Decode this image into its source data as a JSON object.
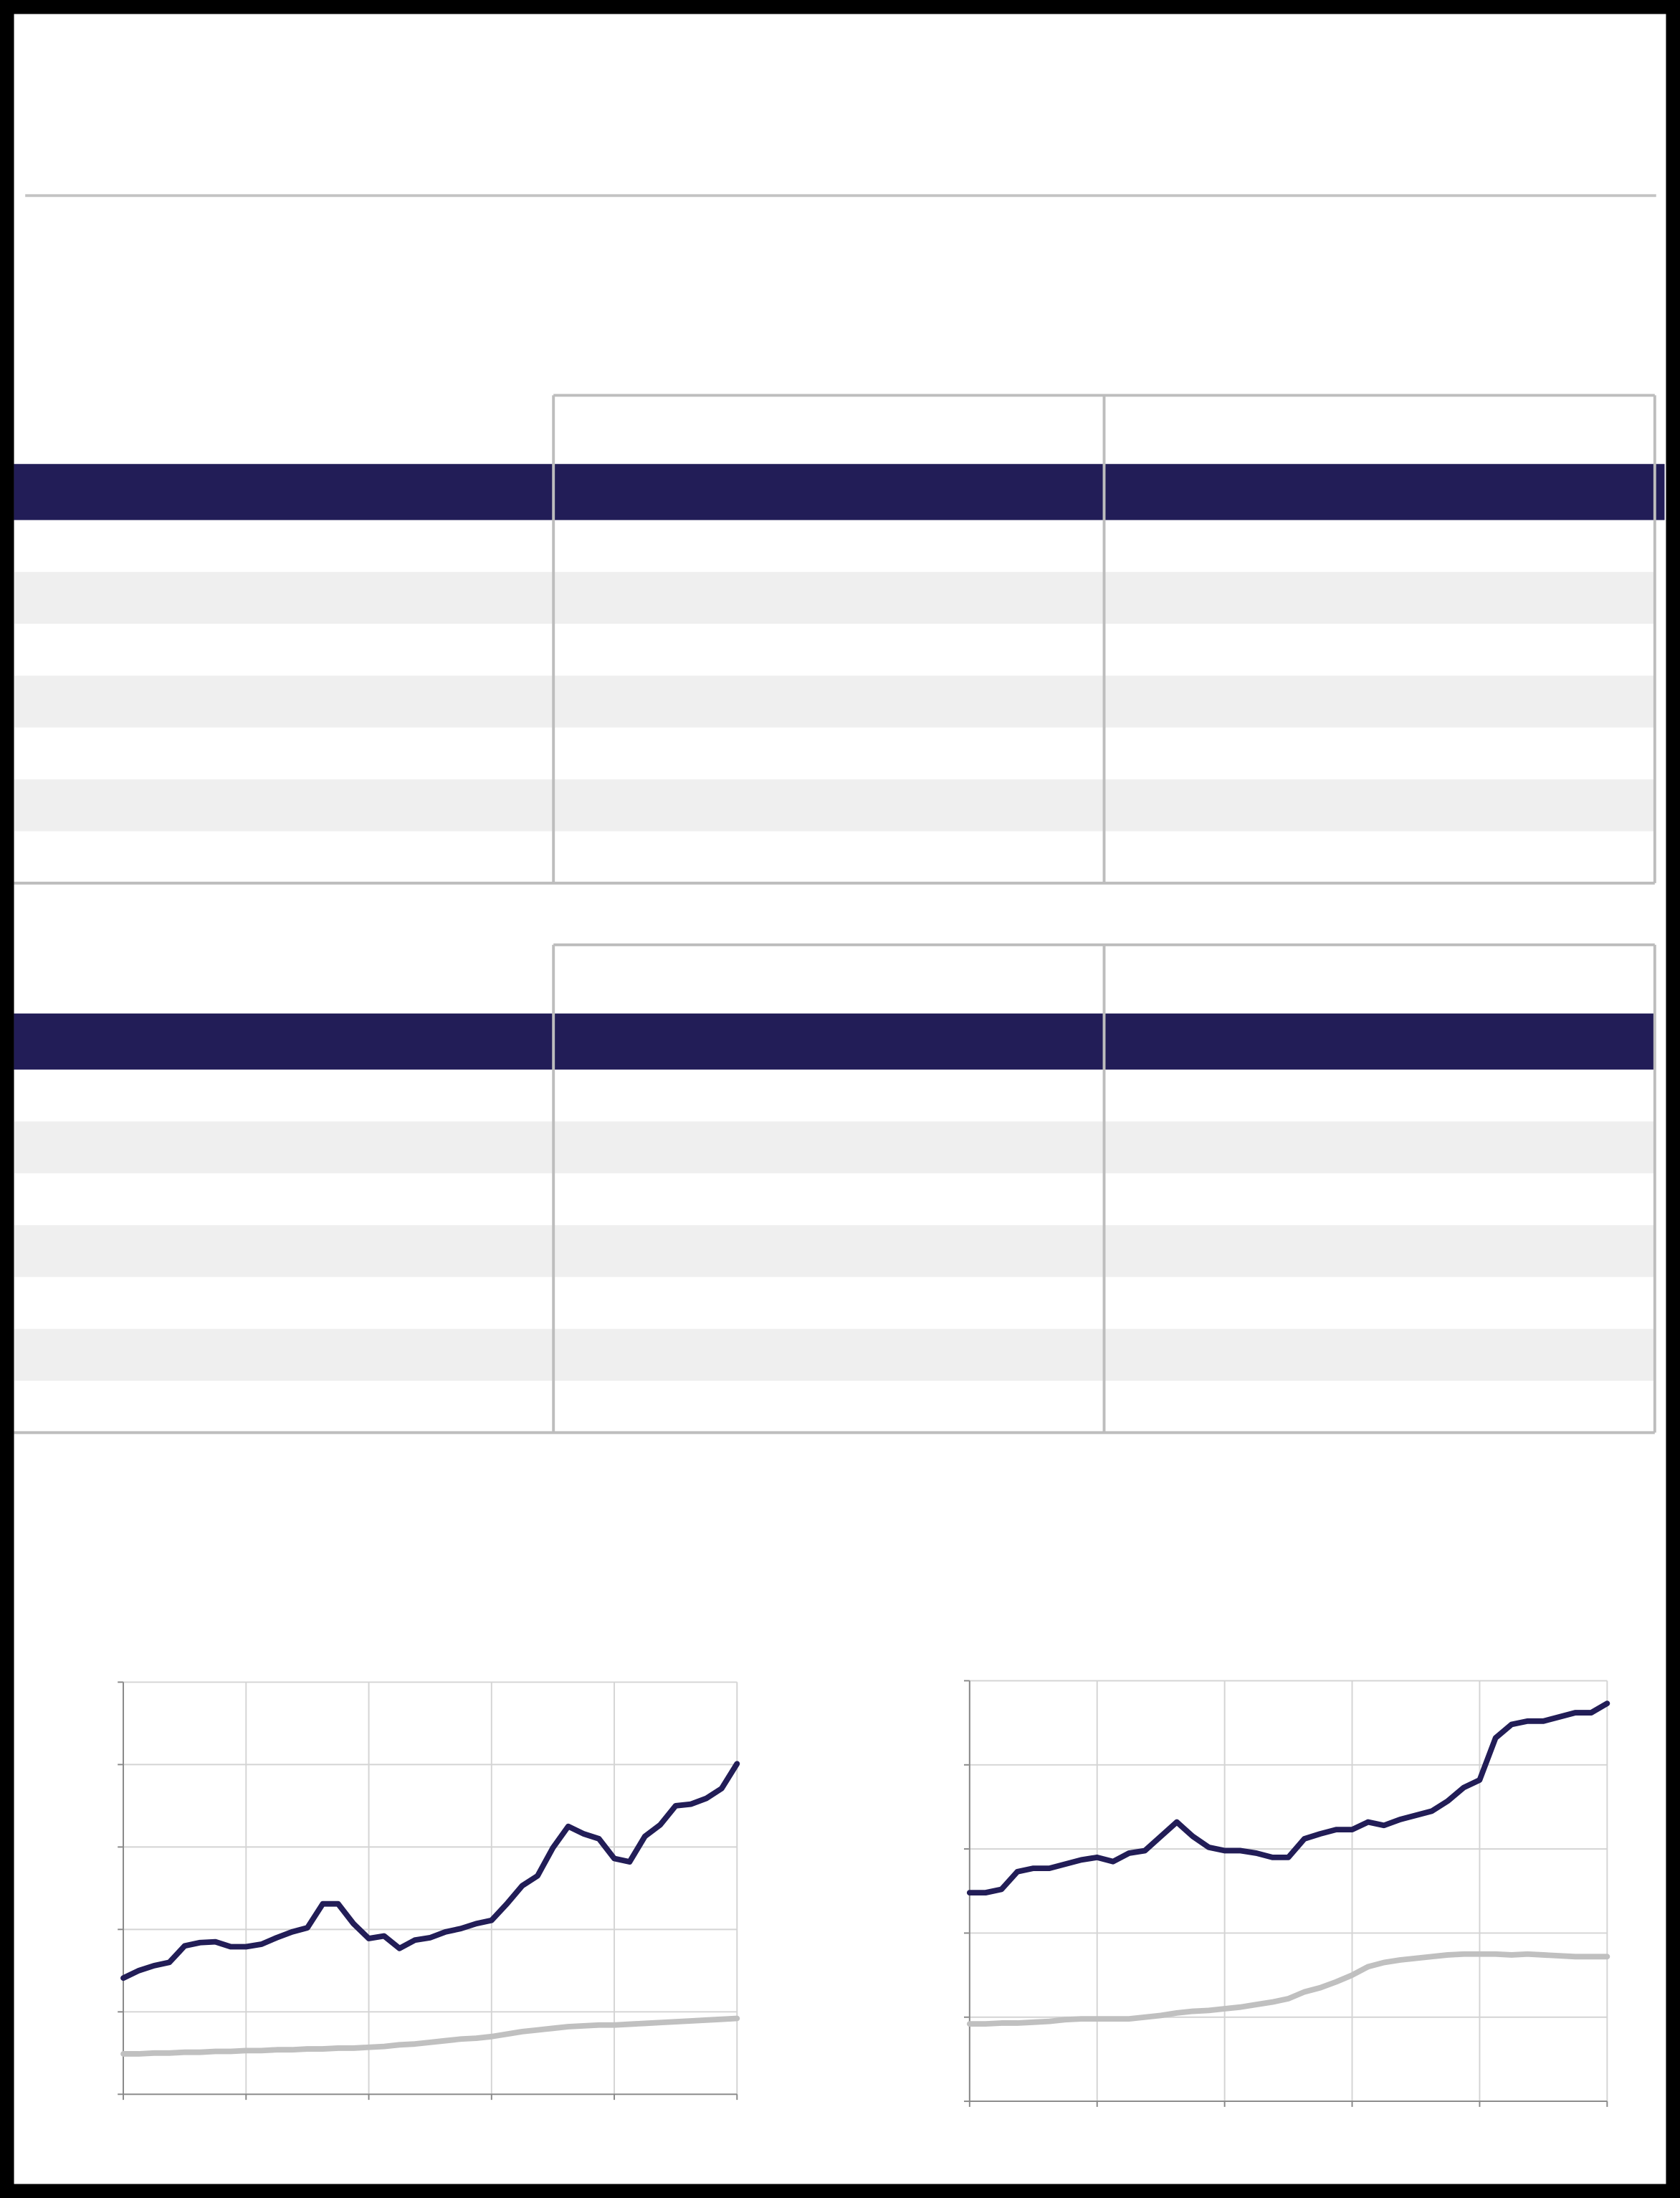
{
  "chart_data": [
    {
      "type": "line",
      "x": [
        0,
        0.125,
        0.25,
        0.375,
        0.5,
        0.625,
        0.75,
        0.875,
        1,
        1.125,
        1.25,
        1.375,
        1.5,
        1.625,
        1.75,
        1.875,
        2,
        2.125,
        2.25,
        2.375,
        2.5,
        2.625,
        2.75,
        2.875,
        3,
        3.125,
        3.25,
        3.375,
        3.5,
        3.625,
        3.75,
        3.875,
        4,
        4.125,
        4.25,
        4.375,
        4.5,
        4.625,
        4.75,
        4.875,
        5
      ],
      "xlim": [
        0,
        5
      ],
      "xticks": [
        0,
        1,
        2,
        3,
        4,
        5
      ],
      "ylim": [
        0,
        5
      ],
      "yticks": [
        0,
        1,
        2,
        3,
        4,
        5
      ],
      "grid": true,
      "series": [
        {
          "color": "#221d57",
          "values": [
            1.41,
            1.5,
            1.56,
            1.6,
            1.8,
            1.84,
            1.85,
            1.79,
            1.79,
            1.82,
            1.9,
            1.97,
            2.02,
            2.31,
            2.31,
            2.07,
            1.89,
            1.92,
            1.77,
            1.87,
            1.9,
            1.97,
            2.01,
            2.07,
            2.11,
            2.31,
            2.53,
            2.65,
            2.99,
            3.25,
            3.16,
            3.1,
            2.86,
            2.82,
            3.13,
            3.27,
            3.5,
            3.52,
            3.59,
            3.71,
            4.01
          ]
        },
        {
          "color": "#c0c0c0",
          "values": [
            0.49,
            0.49,
            0.5,
            0.5,
            0.51,
            0.51,
            0.52,
            0.52,
            0.53,
            0.53,
            0.54,
            0.54,
            0.55,
            0.55,
            0.56,
            0.56,
            0.57,
            0.58,
            0.6,
            0.61,
            0.63,
            0.65,
            0.67,
            0.68,
            0.7,
            0.73,
            0.76,
            0.78,
            0.8,
            0.82,
            0.83,
            0.84,
            0.84,
            0.85,
            0.86,
            0.87,
            0.88,
            0.89,
            0.9,
            0.91,
            0.92
          ]
        }
      ]
    },
    {
      "type": "line",
      "x": [
        0,
        0.125,
        0.25,
        0.375,
        0.5,
        0.625,
        0.75,
        0.875,
        1,
        1.125,
        1.25,
        1.375,
        1.5,
        1.625,
        1.75,
        1.875,
        2,
        2.125,
        2.25,
        2.375,
        2.5,
        2.625,
        2.75,
        2.875,
        3,
        3.125,
        3.25,
        3.375,
        3.5,
        3.625,
        3.75,
        3.875,
        4,
        4.125,
        4.25,
        4.375,
        4.5,
        4.625,
        4.75,
        4.875,
        5
      ],
      "xlim": [
        0,
        5
      ],
      "xticks": [
        0,
        1,
        2,
        3,
        4,
        5
      ],
      "ylim": [
        0,
        5
      ],
      "yticks": [
        0,
        1,
        2,
        3,
        4,
        5
      ],
      "grid": true,
      "series": [
        {
          "color": "#221d57",
          "values": [
            2.48,
            2.48,
            2.52,
            2.73,
            2.77,
            2.77,
            2.82,
            2.87,
            2.9,
            2.85,
            2.95,
            2.98,
            3.15,
            3.32,
            3.15,
            3.02,
            2.98,
            2.98,
            2.95,
            2.9,
            2.9,
            3.12,
            3.18,
            3.23,
            3.23,
            3.32,
            3.28,
            3.35,
            3.4,
            3.45,
            3.57,
            3.73,
            3.82,
            4.32,
            4.48,
            4.52,
            4.52,
            4.57,
            4.62,
            4.62,
            4.73
          ]
        },
        {
          "color": "#c0c0c0",
          "values": [
            0.92,
            0.92,
            0.93,
            0.93,
            0.94,
            0.95,
            0.97,
            0.98,
            0.98,
            0.98,
            0.98,
            1.0,
            1.02,
            1.05,
            1.07,
            1.08,
            1.1,
            1.12,
            1.15,
            1.18,
            1.22,
            1.3,
            1.35,
            1.42,
            1.5,
            1.6,
            1.65,
            1.68,
            1.7,
            1.72,
            1.74,
            1.75,
            1.75,
            1.75,
            1.74,
            1.75,
            1.74,
            1.73,
            1.72,
            1.72,
            1.72
          ]
        }
      ]
    }
  ]
}
